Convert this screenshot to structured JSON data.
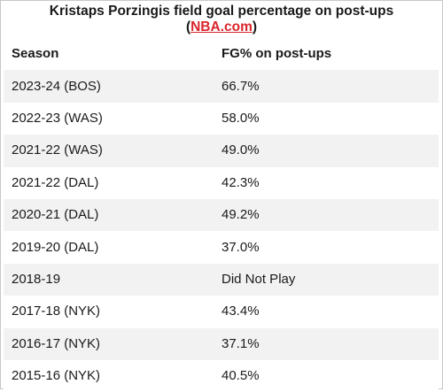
{
  "chart_data": {
    "type": "table",
    "title": "Kristaps Porzingis field goal percentage on post-ups",
    "source_open": "(",
    "source": "NBA.com",
    "source_close": ")",
    "columns": [
      "Season",
      "FG% on post-ups"
    ],
    "rows": [
      [
        "2023-24 (BOS)",
        "66.7%"
      ],
      [
        "2022-23 (WAS)",
        "58.0%"
      ],
      [
        "2021-22 (WAS)",
        "49.0%"
      ],
      [
        "2021-22 (DAL)",
        "42.3%"
      ],
      [
        "2020-21 (DAL)",
        "49.2%"
      ],
      [
        "2019-20 (DAL)",
        "37.0%"
      ],
      [
        "2018-19",
        "Did Not Play"
      ],
      [
        "2017-18 (NYK)",
        "43.4%"
      ],
      [
        "2016-17 (NYK)",
        "37.1%"
      ],
      [
        "2015-16 (NYK)",
        "40.5%"
      ]
    ],
    "colors": {
      "link": "#d8262c",
      "stripe": "#f2f2f2",
      "text": "#1a1a1a"
    }
  }
}
